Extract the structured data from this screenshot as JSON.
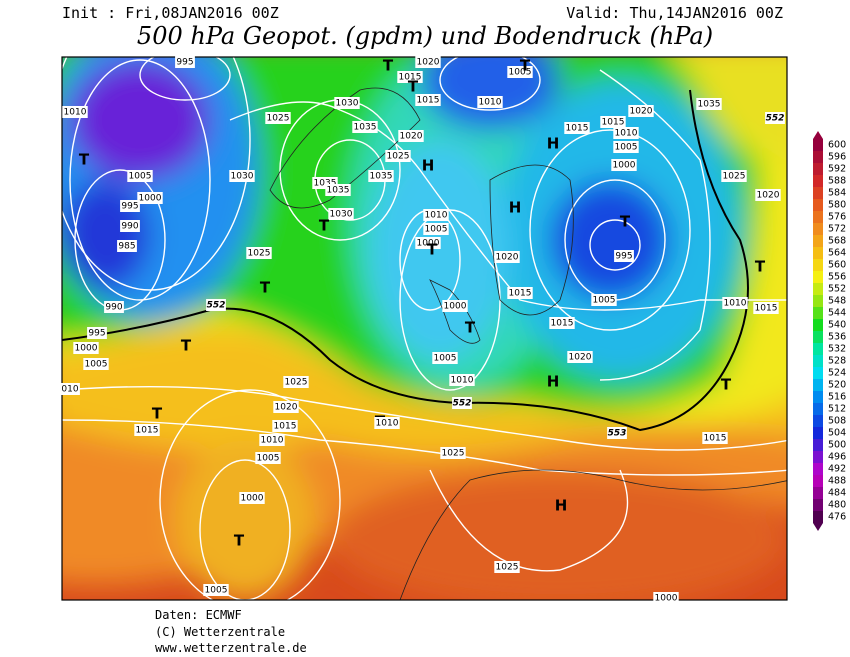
{
  "header": {
    "init": "Init : Fri,08JAN2016 00Z",
    "valid": "Valid: Thu,14JAN2016 00Z",
    "title": "500 hPa Geopot. (gpdm) und Bodendruck (hPa)"
  },
  "map": {
    "labels": [
      "995",
      "1005",
      "1020",
      "1015",
      "T",
      "T",
      "T",
      "1015",
      "1010",
      "1030",
      "1025",
      "1010",
      "1035",
      "1020",
      "1015",
      "1015",
      "1010",
      "1005",
      "1020",
      "1035",
      "552",
      "H",
      "1025",
      "H",
      "1000",
      "T",
      "1005",
      "1030",
      "1035",
      "1035",
      "1035",
      "1025",
      "1000",
      "995",
      "1030",
      "T",
      "H",
      "1020",
      "1010",
      "1005",
      "T",
      "990",
      "1000",
      "T",
      "985",
      "995",
      "1025",
      "1020",
      "T",
      "T",
      "1015",
      "990",
      "552",
      "1000",
      "1005",
      "1010",
      "1015",
      "995",
      "T",
      "T",
      "1015",
      "1000",
      "1005",
      "1005",
      "1020",
      "010",
      "1025",
      "1010",
      "H",
      "T",
      "1020",
      "552",
      "T",
      "1015",
      "1015",
      "T",
      "1010",
      "1010",
      "553",
      "1015",
      "1005",
      "1025",
      "1000",
      "H",
      "T",
      "1025",
      "1005",
      "1000"
    ]
  },
  "colorbar": {
    "levels": [
      600,
      596,
      592,
      588,
      584,
      580,
      576,
      572,
      568,
      564,
      560,
      556,
      552,
      548,
      544,
      540,
      536,
      532,
      528,
      524,
      520,
      516,
      512,
      508,
      504,
      500,
      496,
      492,
      488,
      484,
      480,
      476
    ]
  },
  "footer": {
    "lines": [
      "Daten: ECMWF",
      "(C) Wetterzentrale",
      "www.wetterzentrale.de"
    ]
  }
}
